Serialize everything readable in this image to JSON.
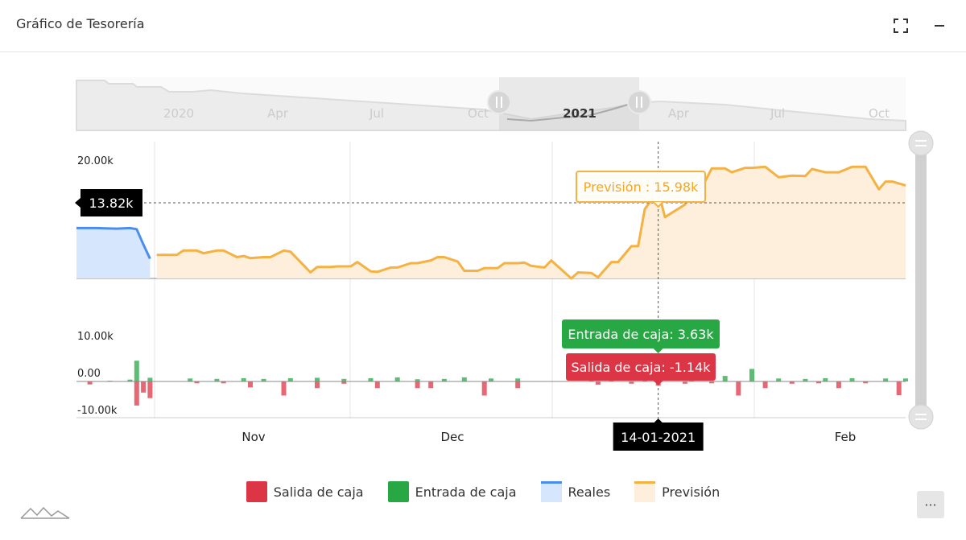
{
  "header": {
    "title": "Gráfico de Tesorería",
    "fullscreen_icon": "expand-icon",
    "minimize_icon": "minus-icon"
  },
  "colors": {
    "salida": "#dc3545",
    "entrada": "#28a745",
    "reales_line": "#4a8df0",
    "reales_fill": "#d6e6fc",
    "prevision_line": "#f5b142",
    "prevision_fill": "#fdefdc",
    "tooltip_prevision_border": "#f5b142",
    "tooltip_prevision_text": "#f5a623"
  },
  "navigator": {
    "labels": [
      "2020",
      "Apr",
      "Jul",
      "Oct",
      "2021",
      "Apr",
      "Jul",
      "Oct"
    ],
    "bold_label": "2021"
  },
  "legend": {
    "items": [
      {
        "label": "Salida de caja",
        "type": "box",
        "color": "#dc3545"
      },
      {
        "label": "Entrada de caja",
        "type": "box",
        "color": "#28a745"
      },
      {
        "label": "Reales",
        "type": "line",
        "color": "#4a8df0",
        "fill": "#d6e6fc"
      },
      {
        "label": "Previsión",
        "type": "line",
        "color": "#f5b142",
        "fill": "#fdefdc"
      }
    ]
  },
  "menu_button": {
    "label": "···",
    "icon": "menu-icon"
  },
  "logo_icon": "mountain-logo-icon",
  "chart_data": [
    {
      "type": "area",
      "x_labels": [
        "Nov",
        "Dec",
        "Feb"
      ],
      "crosshair_x_label": "14-01-2021",
      "y_ticks": [
        "20.00k",
        "0.00"
      ],
      "y_range": [
        0,
        25000
      ],
      "grid": true,
      "series": [
        {
          "name": "Reales",
          "x": [
            "2020-10-19",
            "2020-10-22",
            "2020-10-25",
            "2020-10-27",
            "2020-10-28",
            "2020-10-29",
            "2020-10-30"
          ],
          "y": [
            9200,
            9200,
            9100,
            9200,
            9000,
            6200,
            3600
          ]
        },
        {
          "name": "Previsión",
          "x": [
            "2020-10-31",
            "2020-11-03",
            "2020-11-04",
            "2020-11-06",
            "2020-11-07",
            "2020-11-09",
            "2020-11-10",
            "2020-11-12",
            "2020-11-13",
            "2020-11-14",
            "2020-11-16",
            "2020-11-17",
            "2020-11-19",
            "2020-11-20",
            "2020-11-23",
            "2020-11-24",
            "2020-11-26",
            "2020-11-27",
            "2020-11-29",
            "2020-11-30",
            "2020-12-02",
            "2020-12-03",
            "2020-12-05",
            "2020-12-06",
            "2020-12-08",
            "2020-12-09",
            "2020-12-11",
            "2020-12-12",
            "2020-12-13",
            "2020-12-15",
            "2020-12-16",
            "2020-12-18",
            "2020-12-19",
            "2020-12-21",
            "2020-12-22",
            "2020-12-24",
            "2020-12-25",
            "2020-12-26",
            "2020-12-28",
            "2020-12-29",
            "2021-01-01",
            "2021-01-02",
            "2021-01-04",
            "2021-01-05",
            "2021-01-07",
            "2021-01-08",
            "2021-01-10",
            "2021-01-11",
            "2021-01-12",
            "2021-01-14",
            "2021-01-15",
            "2021-01-18",
            "2021-01-19",
            "2021-01-21",
            "2021-01-22",
            "2021-01-24",
            "2021-01-25",
            "2021-01-27",
            "2021-01-28",
            "2021-01-30",
            "2021-02-01",
            "2021-02-03",
            "2021-02-05",
            "2021-02-06",
            "2021-02-08",
            "2021-02-10",
            "2021-02-12",
            "2021-02-14",
            "2021-02-16",
            "2021-02-17",
            "2021-02-18",
            "2021-02-20"
          ],
          "y": [
            4300,
            4300,
            5100,
            5100,
            4600,
            5100,
            5100,
            3900,
            4100,
            3700,
            3900,
            3900,
            5100,
            4900,
            1100,
            2100,
            2100,
            2200,
            2200,
            3000,
            1300,
            1200,
            2000,
            2000,
            2800,
            2800,
            3300,
            3900,
            3900,
            3100,
            1400,
            1400,
            1900,
            1900,
            2800,
            2800,
            2900,
            2300,
            2000,
            3300,
            0,
            1100,
            1000,
            200,
            3000,
            3000,
            5900,
            5900,
            12700,
            15980,
            11200,
            13500,
            18400,
            17700,
            20100,
            20100,
            19400,
            20200,
            20200,
            20400,
            18500,
            18800,
            18700,
            20000,
            19400,
            19400,
            20400,
            20400,
            16300,
            17700,
            17700,
            17000
          ]
        }
      ],
      "tooltip": {
        "label": "Previsión : 15.98k",
        "crosshair_value_label": "13.82k"
      }
    },
    {
      "type": "bar",
      "y_ticks": [
        "10.00k",
        "0.00",
        "-10.00k"
      ],
      "y_range": [
        -10000,
        10000
      ],
      "series": [
        {
          "name": "Entrada de caja",
          "x": [
            "2020-10-24",
            "2020-10-27",
            "2020-10-28",
            "2020-10-30",
            "2020-11-05",
            "2020-11-09",
            "2020-11-13",
            "2020-11-16",
            "2020-11-20",
            "2020-11-24",
            "2020-11-28",
            "2020-12-02",
            "2020-12-06",
            "2020-12-09",
            "2020-12-13",
            "2020-12-16",
            "2020-12-20",
            "2020-12-24",
            "2021-01-04",
            "2021-01-07",
            "2021-01-12",
            "2021-01-14",
            "2021-01-19",
            "2021-01-24",
            "2021-01-28",
            "2021-02-01",
            "2021-02-05",
            "2021-02-08",
            "2021-02-12",
            "2021-02-17",
            "2021-02-20"
          ],
          "y": [
            200,
            500,
            5600,
            1000,
            800,
            700,
            900,
            700,
            900,
            1000,
            700,
            900,
            1100,
            600,
            700,
            1100,
            800,
            800,
            1000,
            3400,
            2600,
            3630,
            1800,
            1500,
            3400,
            800,
            700,
            900,
            900,
            800,
            800
          ]
        },
        {
          "name": "Salida de caja",
          "x": [
            "2020-10-21",
            "2020-10-28",
            "2020-10-29",
            "2020-10-30",
            "2020-11-06",
            "2020-11-10",
            "2020-11-14",
            "2020-11-19",
            "2020-11-24",
            "2020-11-28",
            "2020-12-03",
            "2020-12-09",
            "2020-12-11",
            "2020-12-19",
            "2020-12-24",
            "2021-01-05",
            "2021-01-10",
            "2021-01-14",
            "2021-01-18",
            "2021-01-22",
            "2021-01-26",
            "2021-01-30",
            "2021-02-03",
            "2021-02-07",
            "2021-02-10",
            "2021-02-14",
            "2021-02-19"
          ],
          "y": [
            -800,
            -6500,
            -3000,
            -4500,
            -500,
            -500,
            -1600,
            -3800,
            -1800,
            -600,
            -1800,
            -1800,
            -1800,
            -3800,
            -1800,
            -900,
            -600,
            -1140,
            -600,
            -500,
            -3800,
            -1800,
            -600,
            -500,
            -1800,
            -500,
            -3700
          ]
        }
      ],
      "tooltip_entrada": "Entrada de caja: 3.63k",
      "tooltip_salida": "Salida de caja: -1.14k"
    }
  ]
}
